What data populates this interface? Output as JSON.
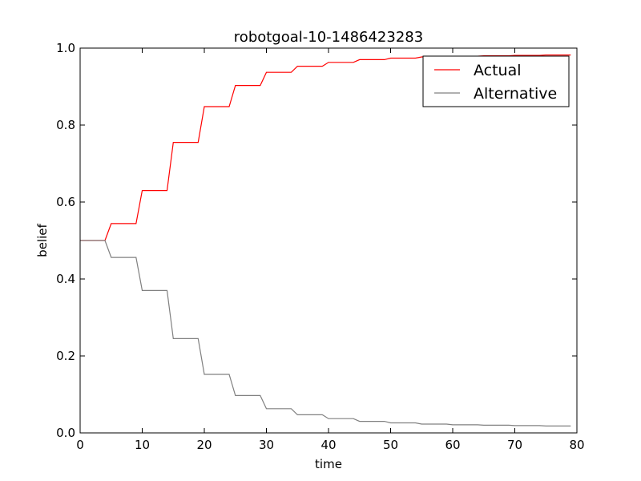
{
  "chart_data": {
    "type": "line",
    "title": "robotgoal-10-1486423283",
    "xlabel": "time",
    "ylabel": "belief",
    "xlim": [
      0,
      80
    ],
    "ylim": [
      0,
      1.0
    ],
    "x_ticks": [
      0,
      10,
      20,
      30,
      40,
      50,
      60,
      70,
      80
    ],
    "y_ticks": [
      0.0,
      0.2,
      0.4,
      0.6,
      0.8,
      1.0
    ],
    "x_tick_labels": [
      "0",
      "10",
      "20",
      "30",
      "40",
      "50",
      "60",
      "70",
      "80"
    ],
    "y_tick_labels": [
      "0.0",
      "0.2",
      "0.4",
      "0.6",
      "0.8",
      "1.0"
    ],
    "grid": false,
    "legend_position": "top-right",
    "series": [
      {
        "name": "Actual",
        "color": "#ff0000",
        "points": [
          [
            0,
            0.5
          ],
          [
            4,
            0.5
          ],
          [
            5,
            0.544
          ],
          [
            9,
            0.544
          ],
          [
            10,
            0.63
          ],
          [
            14,
            0.63
          ],
          [
            15,
            0.755
          ],
          [
            19,
            0.755
          ],
          [
            20,
            0.848
          ],
          [
            24,
            0.848
          ],
          [
            25,
            0.903
          ],
          [
            29,
            0.903
          ],
          [
            30,
            0.937
          ],
          [
            34,
            0.937
          ],
          [
            35,
            0.953
          ],
          [
            39,
            0.953
          ],
          [
            40,
            0.963
          ],
          [
            44,
            0.963
          ],
          [
            45,
            0.97
          ],
          [
            49,
            0.97
          ],
          [
            50,
            0.974
          ],
          [
            54,
            0.974
          ],
          [
            55,
            0.977
          ],
          [
            59,
            0.977
          ],
          [
            60,
            0.979
          ],
          [
            64,
            0.979
          ],
          [
            65,
            0.98
          ],
          [
            69,
            0.98
          ],
          [
            70,
            0.981
          ],
          [
            74,
            0.981
          ],
          [
            75,
            0.982
          ],
          [
            79,
            0.982
          ]
        ]
      },
      {
        "name": "Alternative",
        "color": "#808080",
        "points": [
          [
            0,
            0.5
          ],
          [
            4,
            0.5
          ],
          [
            5,
            0.456
          ],
          [
            9,
            0.456
          ],
          [
            10,
            0.37
          ],
          [
            14,
            0.37
          ],
          [
            15,
            0.245
          ],
          [
            19,
            0.245
          ],
          [
            20,
            0.152
          ],
          [
            24,
            0.152
          ],
          [
            25,
            0.097
          ],
          [
            29,
            0.097
          ],
          [
            30,
            0.063
          ],
          [
            34,
            0.063
          ],
          [
            35,
            0.047
          ],
          [
            39,
            0.047
          ],
          [
            40,
            0.037
          ],
          [
            44,
            0.037
          ],
          [
            45,
            0.03
          ],
          [
            49,
            0.03
          ],
          [
            50,
            0.026
          ],
          [
            54,
            0.026
          ],
          [
            55,
            0.023
          ],
          [
            59,
            0.023
          ],
          [
            60,
            0.021
          ],
          [
            64,
            0.021
          ],
          [
            65,
            0.02
          ],
          [
            69,
            0.02
          ],
          [
            70,
            0.019
          ],
          [
            74,
            0.019
          ],
          [
            75,
            0.018
          ],
          [
            79,
            0.018
          ]
        ]
      }
    ]
  }
}
